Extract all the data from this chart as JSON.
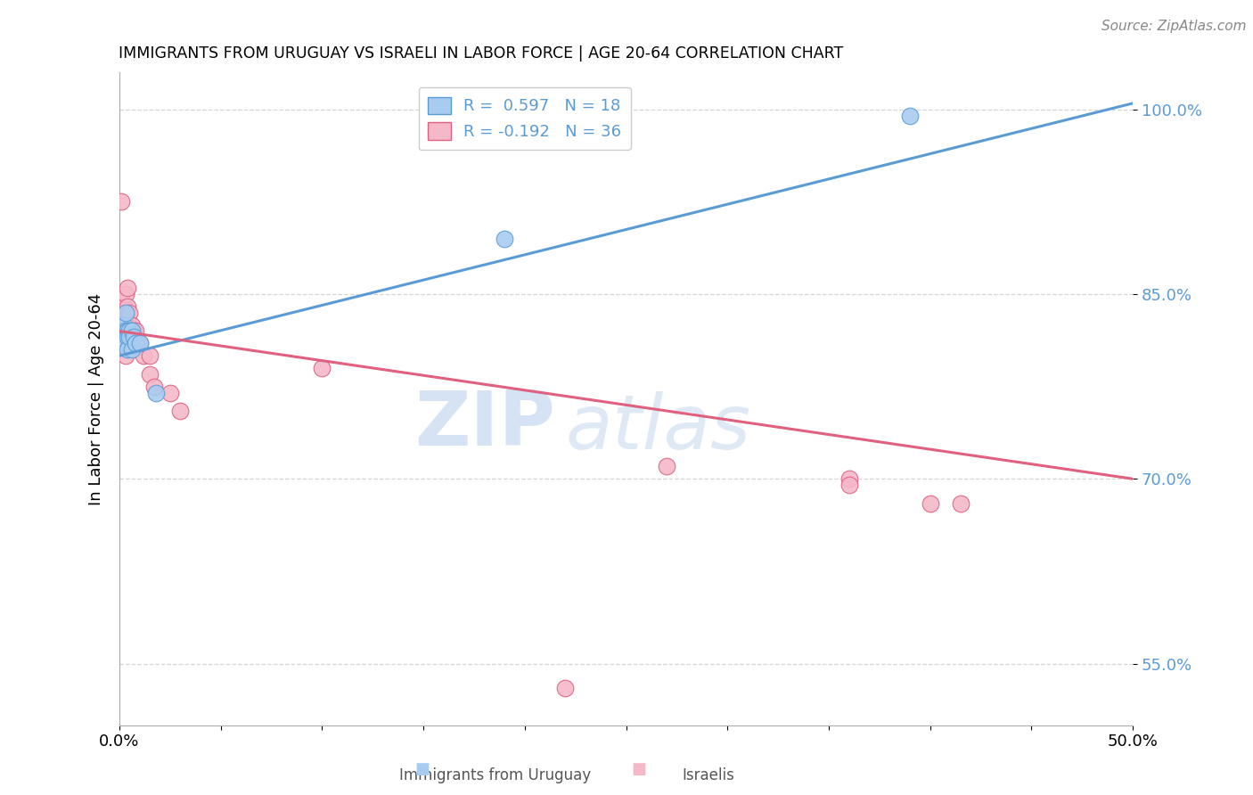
{
  "title": "IMMIGRANTS FROM URUGUAY VS ISRAELI IN LABOR FORCE | AGE 20-64 CORRELATION CHART",
  "source": "Source: ZipAtlas.com",
  "ylabel": "In Labor Force | Age 20-64",
  "xlim": [
    0.0,
    0.5
  ],
  "ylim": [
    0.5,
    1.03
  ],
  "yticks": [
    0.55,
    0.7,
    0.85,
    1.0
  ],
  "ytick_labels": [
    "55.0%",
    "70.0%",
    "85.0%",
    "100.0%"
  ],
  "xticks": [
    0.0,
    0.05,
    0.1,
    0.15,
    0.2,
    0.25,
    0.3,
    0.35,
    0.4,
    0.45,
    0.5
  ],
  "xtick_labels": [
    "0.0%",
    "",
    "",
    "",
    "",
    "",
    "",
    "",
    "",
    "",
    "50.0%"
  ],
  "legend_r1": "R =  0.597   N = 18",
  "legend_r2": "R = -0.192   N = 36",
  "blue_fill": "#A8CCF0",
  "blue_edge": "#5B9BD5",
  "pink_fill": "#F4B8C8",
  "pink_edge": "#E06080",
  "blue_line": "#5B9BD5",
  "pink_line": "#E06080",
  "watermark_color": "#C5D8F0",
  "uruguay_points": [
    [
      0.001,
      0.82
    ],
    [
      0.002,
      0.825
    ],
    [
      0.002,
      0.81
    ],
    [
      0.003,
      0.82
    ],
    [
      0.003,
      0.835
    ],
    [
      0.004,
      0.82
    ],
    [
      0.004,
      0.815
    ],
    [
      0.004,
      0.805
    ],
    [
      0.005,
      0.82
    ],
    [
      0.005,
      0.815
    ],
    [
      0.006,
      0.82
    ],
    [
      0.006,
      0.805
    ],
    [
      0.007,
      0.815
    ],
    [
      0.008,
      0.81
    ],
    [
      0.01,
      0.81
    ],
    [
      0.018,
      0.77
    ],
    [
      0.19,
      0.895
    ],
    [
      0.39,
      0.995
    ]
  ],
  "israeli_points": [
    [
      0.001,
      0.925
    ],
    [
      0.001,
      0.83
    ],
    [
      0.002,
      0.84
    ],
    [
      0.002,
      0.825
    ],
    [
      0.002,
      0.815
    ],
    [
      0.002,
      0.835
    ],
    [
      0.003,
      0.85
    ],
    [
      0.003,
      0.835
    ],
    [
      0.003,
      0.82
    ],
    [
      0.003,
      0.81
    ],
    [
      0.003,
      0.8
    ],
    [
      0.004,
      0.855
    ],
    [
      0.004,
      0.84
    ],
    [
      0.004,
      0.83
    ],
    [
      0.004,
      0.82
    ],
    [
      0.004,
      0.81
    ],
    [
      0.005,
      0.835
    ],
    [
      0.005,
      0.82
    ],
    [
      0.006,
      0.825
    ],
    [
      0.006,
      0.81
    ],
    [
      0.007,
      0.82
    ],
    [
      0.008,
      0.82
    ],
    [
      0.01,
      0.81
    ],
    [
      0.012,
      0.8
    ],
    [
      0.015,
      0.8
    ],
    [
      0.015,
      0.785
    ],
    [
      0.017,
      0.775
    ],
    [
      0.025,
      0.77
    ],
    [
      0.03,
      0.755
    ],
    [
      0.1,
      0.79
    ],
    [
      0.27,
      0.71
    ],
    [
      0.36,
      0.7
    ],
    [
      0.4,
      0.68
    ],
    [
      0.22,
      0.53
    ],
    [
      0.36,
      0.695
    ],
    [
      0.415,
      0.68
    ]
  ],
  "blue_trend_x": [
    0.0,
    0.5
  ],
  "blue_trend_y": [
    0.8,
    1.005
  ],
  "pink_trend_x": [
    0.0,
    0.5
  ],
  "pink_trend_y": [
    0.82,
    0.7
  ]
}
